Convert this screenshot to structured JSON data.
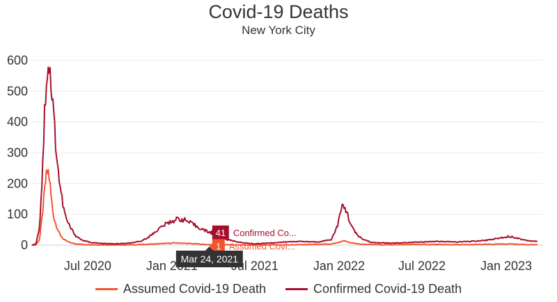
{
  "chart_data": {
    "type": "line",
    "title": "Covid-19 Deaths",
    "subtitle": "New York City",
    "xlabel": "",
    "ylabel": "",
    "ylim": [
      0,
      620
    ],
    "xlim": [
      "2020-02-29",
      "2023-03-15"
    ],
    "yticks": [
      0,
      100,
      200,
      300,
      400,
      500,
      600
    ],
    "xticks": [
      {
        "date": "2020-07-01",
        "label": "Jul 2020"
      },
      {
        "date": "2021-01-01",
        "label": "Jan 2021"
      },
      {
        "date": "2021-07-01",
        "label": "Jul 2021"
      },
      {
        "date": "2022-01-01",
        "label": "Jan 2022"
      },
      {
        "date": "2022-07-01",
        "label": "Jul 2022"
      },
      {
        "date": "2023-01-01",
        "label": "Jan 2023"
      }
    ],
    "grid": true,
    "legend_position": "bottom",
    "series": [
      {
        "name": "Assumed Covid-19 Death",
        "color": "#f2542d",
        "points": [
          [
            "2020-03-01",
            0
          ],
          [
            "2020-03-10",
            1
          ],
          [
            "2020-03-18",
            18
          ],
          [
            "2020-03-25",
            110
          ],
          [
            "2020-03-30",
            195
          ],
          [
            "2020-04-03",
            235
          ],
          [
            "2020-04-06",
            238
          ],
          [
            "2020-04-09",
            210
          ],
          [
            "2020-04-12",
            160
          ],
          [
            "2020-04-16",
            110
          ],
          [
            "2020-04-20",
            80
          ],
          [
            "2020-04-25",
            58
          ],
          [
            "2020-05-01",
            35
          ],
          [
            "2020-05-10",
            18
          ],
          [
            "2020-05-20",
            10
          ],
          [
            "2020-06-01",
            5
          ],
          [
            "2020-06-20",
            2
          ],
          [
            "2020-07-15",
            1
          ],
          [
            "2020-09-01",
            0
          ],
          [
            "2020-10-15",
            1
          ],
          [
            "2020-11-15",
            3
          ],
          [
            "2020-12-15",
            5
          ],
          [
            "2021-01-10",
            7
          ],
          [
            "2021-01-25",
            6
          ],
          [
            "2021-02-20",
            4
          ],
          [
            "2021-03-24",
            1
          ],
          [
            "2021-05-01",
            1
          ],
          [
            "2021-07-01",
            0
          ],
          [
            "2021-10-01",
            1
          ],
          [
            "2021-12-15",
            3
          ],
          [
            "2022-01-05",
            10
          ],
          [
            "2022-01-12",
            14
          ],
          [
            "2022-01-25",
            8
          ],
          [
            "2022-02-15",
            3
          ],
          [
            "2022-04-01",
            1
          ],
          [
            "2022-07-01",
            2
          ],
          [
            "2022-10-01",
            1
          ],
          [
            "2022-12-20",
            3
          ],
          [
            "2023-01-10",
            4
          ],
          [
            "2023-02-01",
            2
          ],
          [
            "2023-03-10",
            1
          ]
        ]
      },
      {
        "name": "Confirmed Covid-19 Death",
        "color": "#a50f2d",
        "points": [
          [
            "2020-03-01",
            0
          ],
          [
            "2020-03-10",
            3
          ],
          [
            "2020-03-18",
            60
          ],
          [
            "2020-03-24",
            230
          ],
          [
            "2020-03-29",
            430
          ],
          [
            "2020-04-02",
            540
          ],
          [
            "2020-04-05",
            595
          ],
          [
            "2020-04-07",
            585
          ],
          [
            "2020-04-09",
            570
          ],
          [
            "2020-04-11",
            540
          ],
          [
            "2020-04-15",
            470
          ],
          [
            "2020-04-20",
            380
          ],
          [
            "2020-04-25",
            280
          ],
          [
            "2020-05-01",
            200
          ],
          [
            "2020-05-08",
            130
          ],
          [
            "2020-05-15",
            85
          ],
          [
            "2020-05-25",
            55
          ],
          [
            "2020-06-05",
            30
          ],
          [
            "2020-06-20",
            15
          ],
          [
            "2020-07-10",
            8
          ],
          [
            "2020-08-01",
            5
          ],
          [
            "2020-09-01",
            4
          ],
          [
            "2020-10-01",
            6
          ],
          [
            "2020-10-25",
            12
          ],
          [
            "2020-11-15",
            30
          ],
          [
            "2020-12-01",
            50
          ],
          [
            "2020-12-15",
            65
          ],
          [
            "2021-01-01",
            78
          ],
          [
            "2021-01-15",
            85
          ],
          [
            "2021-01-28",
            82
          ],
          [
            "2021-02-10",
            72
          ],
          [
            "2021-02-25",
            60
          ],
          [
            "2021-03-10",
            50
          ],
          [
            "2021-03-24",
            41
          ],
          [
            "2021-04-10",
            30
          ],
          [
            "2021-05-01",
            18
          ],
          [
            "2021-06-01",
            8
          ],
          [
            "2021-07-01",
            4
          ],
          [
            "2021-08-15",
            8
          ],
          [
            "2021-10-01",
            12
          ],
          [
            "2021-11-15",
            10
          ],
          [
            "2021-12-15",
            18
          ],
          [
            "2021-12-28",
            60
          ],
          [
            "2022-01-05",
            110
          ],
          [
            "2022-01-10",
            128
          ],
          [
            "2022-01-16",
            115
          ],
          [
            "2022-01-25",
            75
          ],
          [
            "2022-02-05",
            40
          ],
          [
            "2022-02-20",
            20
          ],
          [
            "2022-03-15",
            8
          ],
          [
            "2022-05-01",
            6
          ],
          [
            "2022-06-01",
            8
          ],
          [
            "2022-07-01",
            10
          ],
          [
            "2022-08-01",
            12
          ],
          [
            "2022-09-15",
            10
          ],
          [
            "2022-10-15",
            12
          ],
          [
            "2022-11-15",
            15
          ],
          [
            "2022-12-15",
            22
          ],
          [
            "2023-01-05",
            28
          ],
          [
            "2023-01-20",
            25
          ],
          [
            "2023-02-05",
            18
          ],
          [
            "2023-02-20",
            14
          ],
          [
            "2023-03-10",
            12
          ]
        ]
      }
    ],
    "tooltip": {
      "date": "2021-03-24",
      "date_label": "Mar 24, 2021",
      "items": [
        {
          "series": "Confirmed Covid-19 Death",
          "value": "41",
          "label": "Confirmed Co..."
        },
        {
          "series": "Assumed Covid-19 Death",
          "value": "1",
          "label": "Assumed Covi..."
        }
      ]
    }
  }
}
